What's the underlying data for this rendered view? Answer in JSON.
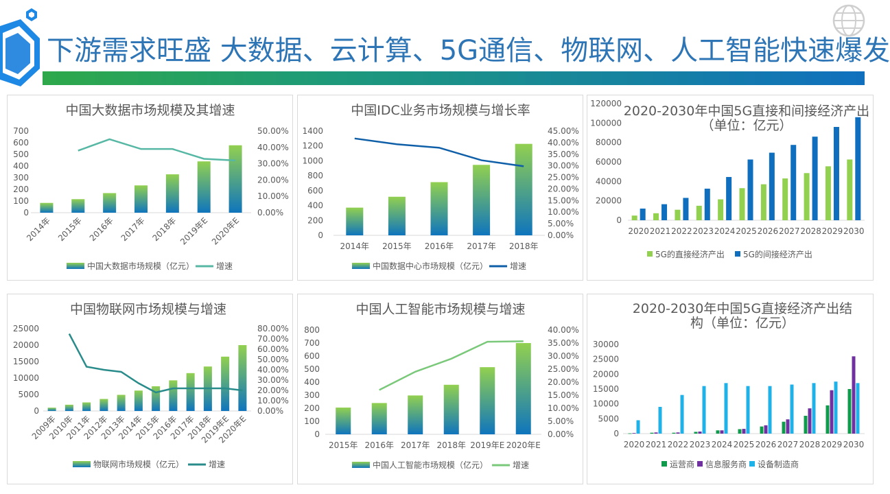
{
  "page": {
    "title": "下游需求旺盛  大数据、云计算、5G通信、物联网、人工智能快速爆发"
  },
  "colors": {
    "title": "#2E75B6",
    "bar_top": "#92D050",
    "bar_bottom": "#0F75BD",
    "line_teal": "#56B8A4",
    "line_blue": "#0F5FA8",
    "line_dark_teal": "#2A8B8B",
    "line_green": "#7AC879",
    "green": "#92D050",
    "blue": "#0F6EBD",
    "dark_green": "#109B4C",
    "purple": "#7030A0",
    "cyan": "#1FB2E8"
  },
  "chart_data": [
    {
      "type": "bar",
      "title": "中国大数据市场规模及其增速",
      "categories": [
        "2014年",
        "2015年",
        "2016年",
        "2017年",
        "2018年",
        "2019年E",
        "2020年E"
      ],
      "series": [
        {
          "name": "中国大数据市场规模（亿元）",
          "kind": "bar",
          "values": [
            84,
            116,
            168,
            234,
            329,
            440,
            578
          ]
        },
        {
          "name": "增速",
          "kind": "line",
          "axis": "right",
          "values": [
            null,
            38,
            45,
            39,
            39,
            33,
            32
          ]
        }
      ],
      "left_ticks": [
        "0",
        "100",
        "200",
        "300",
        "400",
        "500",
        "600",
        "700"
      ],
      "right_ticks": [
        "0.00%",
        "10.00%",
        "20.00%",
        "30.00%",
        "40.00%",
        "50.00%"
      ],
      "ylim": [
        0,
        700
      ],
      "y2lim": [
        0,
        50
      ]
    },
    {
      "type": "bar",
      "title": "中国IDC业务市场规模与增长率",
      "categories": [
        "2014年",
        "2015年",
        "2016年",
        "2017年",
        "2018年"
      ],
      "series": [
        {
          "name": "中国数据中心市场规模（亿元）",
          "kind": "bar",
          "values": [
            372,
            518,
            714,
            946,
            1228
          ]
        },
        {
          "name": "增速",
          "kind": "line",
          "axis": "right",
          "values": [
            41.8,
            39.3,
            37.8,
            32.4,
            29.8
          ]
        }
      ],
      "left_ticks": [
        "0",
        "200",
        "400",
        "600",
        "800",
        "1000",
        "1200",
        "1400"
      ],
      "right_ticks": [
        "0.00%",
        "5.00%",
        "10.00%",
        "15.00%",
        "20.00%",
        "25.00%",
        "30.00%",
        "35.00%",
        "40.00%",
        "45.00%"
      ],
      "ylim": [
        0,
        1400
      ],
      "y2lim": [
        0,
        45
      ]
    },
    {
      "type": "bar",
      "title": "2020-2030年中国5G直接和间接经济产出",
      "subtitle": "（单位：亿元）",
      "categories": [
        "2020",
        "2021",
        "2022",
        "2023",
        "2024",
        "2025",
        "2026",
        "2027",
        "2028",
        "2029",
        "2030"
      ],
      "series": [
        {
          "name": "5G的直接经济产出",
          "values": [
            4800,
            7200,
            10800,
            14900,
            21500,
            33000,
            37000,
            43000,
            48500,
            55500,
            62500
          ]
        },
        {
          "name": "5G的间接经济产出",
          "values": [
            12000,
            16500,
            23000,
            32500,
            44500,
            62500,
            69500,
            77500,
            86000,
            96000,
            106000
          ]
        }
      ],
      "left_ticks": [
        "0",
        "20000",
        "40000",
        "60000",
        "80000",
        "100000",
        "120000"
      ],
      "ylim": [
        0,
        120000
      ]
    },
    {
      "type": "bar",
      "title": "中国物联网市场规模与增速",
      "categories": [
        "2009年",
        "2010年",
        "2011年",
        "2012年",
        "2013年",
        "2014年",
        "2015年",
        "2016年",
        "2017年",
        "2018年",
        "2019年E",
        "2020年E"
      ],
      "series": [
        {
          "name": "物联网市场规模（亿元）",
          "kind": "bar",
          "values": [
            1000,
            1900,
            2600,
            3650,
            4900,
            6200,
            7500,
            9300,
            11500,
            13500,
            16500,
            20000
          ]
        },
        {
          "name": "增速",
          "kind": "line",
          "axis": "right",
          "values": [
            null,
            75,
            43,
            40,
            38,
            27,
            18,
            22,
            22,
            22,
            22,
            20
          ]
        }
      ],
      "left_ticks": [
        "0",
        "5000",
        "10000",
        "15000",
        "20000",
        "25000"
      ],
      "right_ticks": [
        "0.00%",
        "10.00%",
        "20.00%",
        "30.00%",
        "40.00%",
        "50.00%",
        "60.00%",
        "70.00%",
        "80.00%"
      ],
      "ylim": [
        0,
        25000
      ],
      "y2lim": [
        0,
        80
      ]
    },
    {
      "type": "bar",
      "title": "中国人工智能市场规模与增速",
      "categories": [
        "2015年",
        "2016年",
        "2017年",
        "2018年",
        "2019年E",
        "2020年E"
      ],
      "series": [
        {
          "name": "中国人工智能市场规模（亿元）",
          "kind": "bar",
          "values": [
            205,
            240,
            298,
            380,
            515,
            700
          ]
        },
        {
          "name": "增速",
          "kind": "line",
          "axis": "right",
          "values": [
            null,
            17,
            24,
            29,
            35.5,
            35.7
          ]
        }
      ],
      "left_ticks": [
        "0",
        "100",
        "200",
        "300",
        "400",
        "500",
        "600",
        "700",
        "800"
      ],
      "right_ticks": [
        "0.00%",
        "5.00%",
        "10.00%",
        "15.00%",
        "20.00%",
        "25.00%",
        "30.00%",
        "35.00%",
        "40.00%"
      ],
      "ylim": [
        0,
        800
      ],
      "y2lim": [
        0,
        40
      ]
    },
    {
      "type": "bar",
      "title": "2020-2030年中国5G直接经济产出结",
      "subtitle": "构（单位：亿元）",
      "categories": [
        "2020",
        "2021",
        "2022",
        "2023",
        "2024",
        "2025",
        "2026",
        "2027",
        "2028",
        "2029",
        "2030"
      ],
      "series": [
        {
          "name": "运营商",
          "values": [
            100,
            300,
            300,
            600,
            1100,
            1500,
            2400,
            4000,
            6000,
            9500,
            15000
          ]
        },
        {
          "name": "信息服务商",
          "values": [
            200,
            400,
            400,
            700,
            1100,
            1600,
            2800,
            4800,
            8500,
            14600,
            26000
          ]
        },
        {
          "name": "设备制造商",
          "values": [
            4500,
            9000,
            13000,
            16000,
            17000,
            16000,
            16000,
            16500,
            17000,
            17500,
            17000
          ]
        }
      ],
      "left_ticks": [
        "0",
        "5000",
        "10000",
        "15000",
        "20000",
        "25000",
        "30000"
      ],
      "ylim": [
        0,
        30000
      ]
    }
  ]
}
